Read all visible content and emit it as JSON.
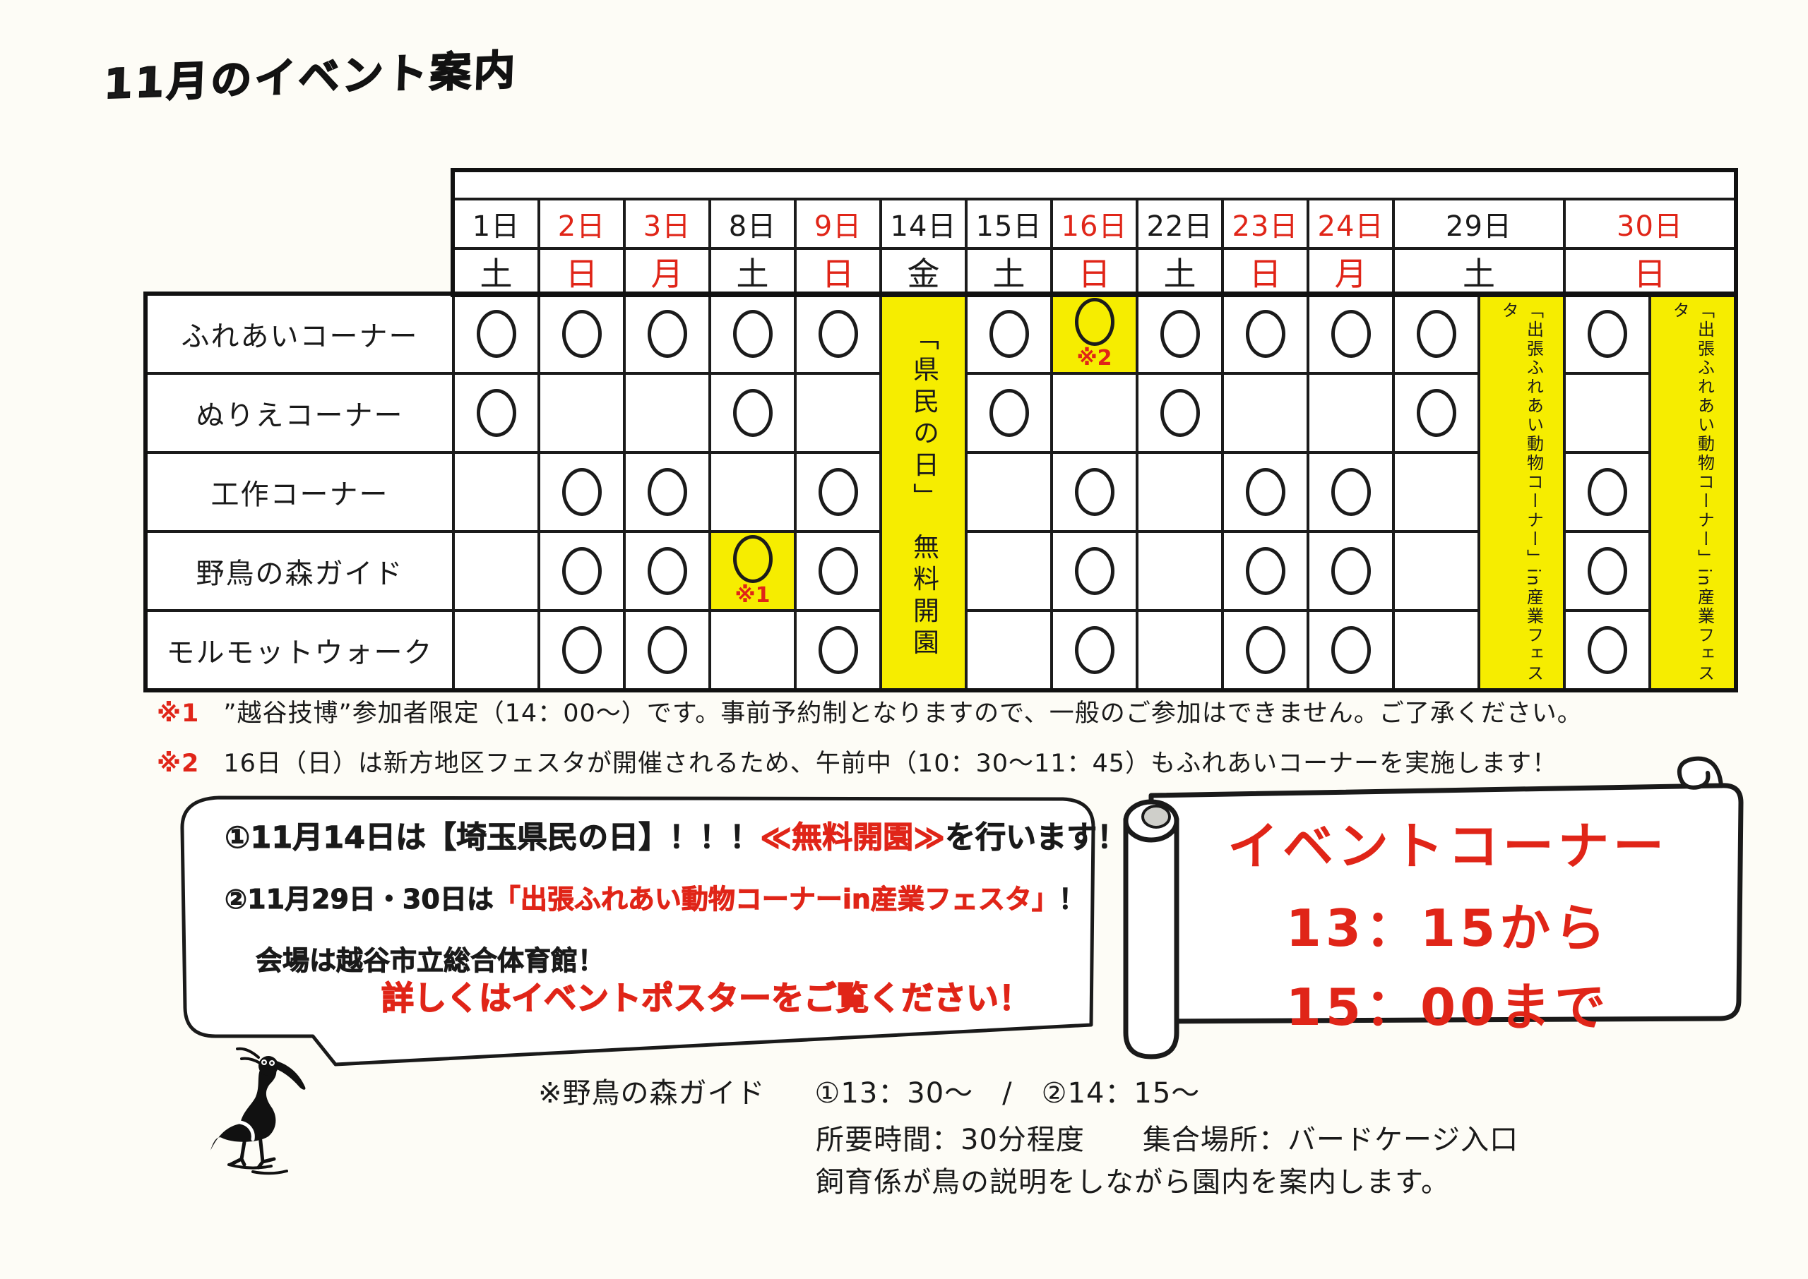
{
  "title": "11月のイベント案内",
  "colors": {
    "red": "#e02518",
    "yellow": "#f6ed00",
    "ink": "#1a1a1a",
    "paper": "#fdfcf6"
  },
  "calendar": {
    "columns": [
      {
        "date": "1日",
        "day": "土",
        "red": false
      },
      {
        "date": "2日",
        "day": "日",
        "red": true
      },
      {
        "date": "3日",
        "day": "月",
        "red": true
      },
      {
        "date": "8日",
        "day": "土",
        "red": false
      },
      {
        "date": "9日",
        "day": "日",
        "red": true
      },
      {
        "date": "14日",
        "day": "金",
        "red": false,
        "special": "kenmin"
      },
      {
        "date": "15日",
        "day": "土",
        "red": false
      },
      {
        "date": "16日",
        "day": "日",
        "red": true
      },
      {
        "date": "22日",
        "day": "土",
        "red": false
      },
      {
        "date": "23日",
        "day": "日",
        "red": true
      },
      {
        "date": "24日",
        "day": "月",
        "red": true
      },
      {
        "date": "29日",
        "day": "土",
        "red": false,
        "special": "fest"
      },
      {
        "date": "30日",
        "day": "日",
        "red": true,
        "special": "fest"
      }
    ],
    "kenmin_banner": "「県民の日」　無料開園",
    "fest_banner": "「出張ふれあい動物コーナー」in産業フェスタ",
    "ref1": "※1",
    "ref2": "※2",
    "rows": [
      {
        "label": "ふれあいコーナー",
        "cells": [
          "o",
          "o",
          "o",
          "o",
          "o",
          "",
          "o",
          "o2",
          "o",
          "o",
          "o",
          "o",
          "o"
        ]
      },
      {
        "label": "ぬりえコーナー",
        "cells": [
          "o",
          "",
          "",
          "o",
          "",
          "",
          "o",
          "",
          "o",
          "",
          "",
          "o",
          ""
        ]
      },
      {
        "label": "工作コーナー",
        "cells": [
          "",
          "o",
          "o",
          "",
          "o",
          "",
          "",
          "o",
          "",
          "o",
          "o",
          "",
          "o"
        ]
      },
      {
        "label": "野鳥の森ガイド",
        "cells": [
          "",
          "o",
          "o",
          "o1",
          "o",
          "",
          "",
          "o",
          "",
          "o",
          "o",
          "",
          "o"
        ]
      },
      {
        "label": "モルモットウォーク",
        "cells": [
          "",
          "o",
          "o",
          "",
          "o",
          "",
          "",
          "o",
          "",
          "o",
          "o",
          "",
          "o"
        ]
      }
    ]
  },
  "notes": [
    {
      "mark": "※1",
      "text": "”越谷技博”参加者限定（14：00～）です。事前予約制となりますので、一般のご参加はできません。ご了承ください。"
    },
    {
      "mark": "※2",
      "text": "16日（日）は新方地区フェスタが開催されるため、午前中（10：30～11：45）もふれあいコーナーを実施します！"
    }
  ],
  "bubble": {
    "line1_pre": "①11月14日は【埼玉県民の日】！！！",
    "line1_red": "≪無料開園≫",
    "line1_post": "を行います！",
    "line2_pre": "②11月29日・30日は",
    "line2_red": "「出張ふれあい動物コーナーin産業フェスタ」",
    "line2_post": "！",
    "line3": "会場は越谷市立総合体育館！",
    "line4": "詳しくはイベントポスターをご覧ください！"
  },
  "scroll": {
    "line1": "イベントコーナー",
    "line2": "13：15から",
    "line3": "15：00まで"
  },
  "guide": {
    "label": "※野鳥の森ガイド",
    "times": "①13：30～　/　②14：15～",
    "line2": "所要時間：30分程度　　集合場所：バードケージ入口",
    "line3": "飼育係が鳥の説明をしながら園内を案内します。"
  }
}
